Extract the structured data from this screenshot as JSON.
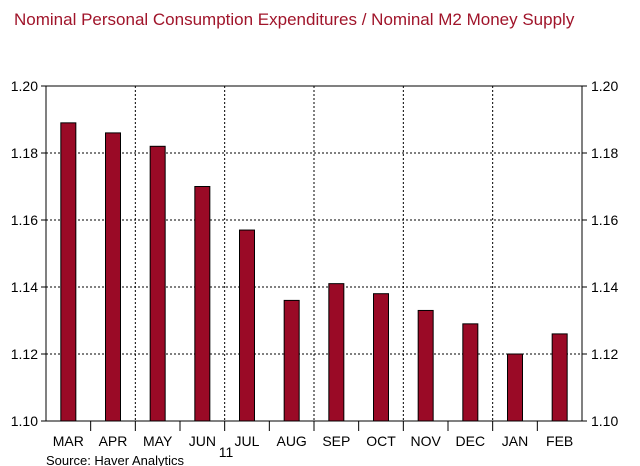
{
  "chart_data": {
    "type": "bar",
    "title": "Nominal Personal Consumption Expenditures / Nominal M2 Money Supply",
    "categories": [
      "MAR",
      "APR",
      "MAY",
      "JUN",
      "JUL",
      "AUG",
      "SEP",
      "OCT",
      "NOV",
      "DEC",
      "JAN",
      "FEB"
    ],
    "year_label": "11",
    "values": [
      1.189,
      1.186,
      1.182,
      1.17,
      1.157,
      1.136,
      1.141,
      1.138,
      1.133,
      1.129,
      1.12,
      1.126
    ],
    "ylim": [
      1.1,
      1.2
    ],
    "yticks": [
      "1.10",
      "1.12",
      "1.14",
      "1.16",
      "1.18",
      "1.20"
    ],
    "xlabel": "",
    "ylabel": "",
    "grid": true,
    "source": "Source: Haver Analytics",
    "colors": {
      "bar": "#9a0a26",
      "title": "#a0142a",
      "axis": "#000000",
      "grid": "#000000"
    }
  }
}
